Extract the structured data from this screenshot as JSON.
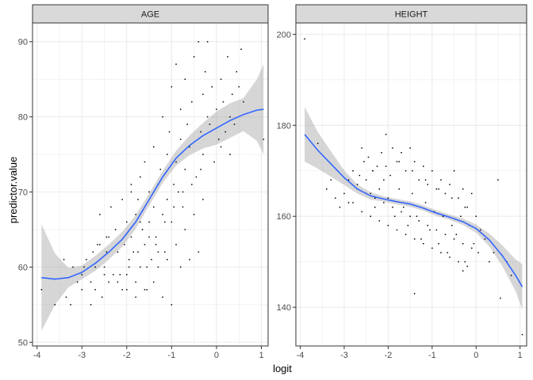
{
  "chart_data": {
    "type": "scatter",
    "xlabel": "logit",
    "ylabel": "predictor.value",
    "colors": {
      "panel_bg": "#ffffff",
      "grid": "#ebebeb",
      "strip_bg": "#d9d9d9",
      "border": "#333333",
      "smooth_line": "#3366ff",
      "ribbon": "#999999",
      "points": "#000000"
    },
    "grid": true,
    "panels": [
      {
        "strip": "AGE",
        "xlim": [
          -4.1,
          1.15
        ],
        "ylim": [
          49.5,
          92.5
        ],
        "xticks": [
          -4,
          -3,
          -2,
          -1,
          0,
          1
        ],
        "xtick_labels": [
          "-4",
          "-3",
          "-2",
          "-1",
          "0",
          "1"
        ],
        "yticks": [
          50,
          60,
          70,
          80,
          90
        ],
        "ytick_labels": [
          "50",
          "60",
          "70",
          "80",
          "90"
        ],
        "smooth": {
          "x": [
            -3.9,
            -3.6,
            -3.3,
            -3.0,
            -2.7,
            -2.4,
            -2.1,
            -1.8,
            -1.5,
            -1.2,
            -0.9,
            -0.6,
            -0.3,
            0.0,
            0.3,
            0.6,
            0.9,
            1.05
          ],
          "y": [
            58.6,
            58.4,
            58.6,
            59.3,
            60.5,
            62.0,
            63.7,
            66.0,
            69.0,
            72.0,
            74.5,
            76.2,
            77.5,
            78.5,
            79.5,
            80.3,
            80.9,
            81.0
          ],
          "lower": [
            51.5,
            55.0,
            57.3,
            58.4,
            59.5,
            61.0,
            62.7,
            65.1,
            68.2,
            71.2,
            73.5,
            74.9,
            75.8,
            76.3,
            77.2,
            78.1,
            76.8,
            75.0
          ],
          "upper": [
            65.7,
            61.8,
            59.9,
            60.2,
            61.5,
            63.0,
            64.7,
            66.9,
            69.8,
            72.8,
            75.5,
            77.5,
            79.2,
            80.7,
            81.8,
            82.5,
            85.0,
            87.0
          ]
        },
        "points": {
          "x": [
            -3.9,
            -3.6,
            -3.4,
            -3.35,
            -3.25,
            -3.1,
            -3.0,
            -2.95,
            -2.8,
            -2.75,
            -2.7,
            -2.7,
            -2.6,
            -2.55,
            -2.5,
            -2.45,
            -2.4,
            -2.4,
            -2.3,
            -2.25,
            -2.2,
            -2.1,
            -2.05,
            -2.0,
            -2.0,
            -1.95,
            -1.9,
            -1.9,
            -1.85,
            -1.8,
            -1.8,
            -1.75,
            -1.7,
            -1.7,
            -1.65,
            -1.6,
            -1.6,
            -1.55,
            -1.5,
            -1.5,
            -1.45,
            -1.4,
            -1.4,
            -1.35,
            -1.3,
            -1.3,
            -1.25,
            -1.2,
            -1.2,
            -1.15,
            -1.1,
            -1.1,
            -1.05,
            -1.0,
            -1.0,
            -0.95,
            -0.9,
            -0.9,
            -0.85,
            -0.8,
            -0.8,
            -0.75,
            -0.7,
            -0.7,
            -0.65,
            -0.6,
            -0.55,
            -0.5,
            -0.45,
            -0.4,
            -0.35,
            -0.3,
            -0.3,
            -0.25,
            -0.2,
            -0.2,
            -0.15,
            -0.1,
            -0.05,
            0.0,
            0.05,
            0.1,
            0.15,
            0.2,
            0.25,
            0.3,
            0.35,
            0.4,
            0.45,
            0.5,
            0.55,
            0.6,
            1.05,
            -2.6,
            -2.35,
            -2.1,
            -1.9,
            -1.7,
            -1.5,
            -1.3,
            -1.1,
            -0.9,
            -0.7,
            -0.5,
            -0.3,
            -2.8,
            -2.5,
            -2.2,
            -2.0,
            -1.8,
            -1.6,
            -1.4,
            -1.2,
            -1.0,
            -0.8,
            -0.6,
            -0.4,
            -3.2,
            -3.0,
            -2.9,
            -2.65,
            -2.45,
            -2.15,
            -1.95,
            -1.75,
            -1.55,
            -1.35,
            -1.15,
            -0.95,
            -0.75,
            -0.55,
            -0.35,
            0.1,
            0.3
          ],
          "y": [
            57,
            55,
            61,
            56,
            55,
            58,
            59,
            60,
            55,
            62,
            57,
            60,
            63,
            56,
            60,
            62,
            58,
            64,
            59,
            65,
            62,
            57,
            63,
            66,
            59,
            60,
            71,
            64,
            62,
            67,
            58,
            69,
            60,
            72,
            65,
            63,
            74,
            57,
            66,
            70,
            61,
            68,
            76,
            63,
            71,
            60,
            73,
            67,
            80,
            62,
            75,
            69,
            78,
            66,
            84,
            71,
            74,
            87,
            70,
            77,
            81,
            68,
            85,
            73,
            79,
            76,
            82,
            88,
            72,
            90,
            78,
            83,
            75,
            86,
            80,
            90,
            79,
            84,
            74,
            81,
            77,
            85,
            82,
            78,
            88,
            80,
            83,
            79,
            86,
            84,
            89,
            82,
            77,
            67,
            68,
            69,
            70,
            66,
            64,
            62,
            61,
            63,
            65,
            67,
            69,
            58,
            59,
            58,
            57,
            56,
            57,
            58,
            56,
            55,
            60,
            61,
            62,
            60,
            57,
            61,
            63,
            64,
            59,
            61,
            62,
            60,
            64,
            66,
            68,
            70,
            71,
            73,
            76,
            75
          ]
        }
      },
      {
        "strip": "HEIGHT",
        "xlim": [
          -4.1,
          1.15
        ],
        "ylim": [
          131.5,
          202.5
        ],
        "xticks": [
          -4,
          -3,
          -2,
          -1,
          0,
          1
        ],
        "xtick_labels": [
          "-4",
          "-3",
          "-2",
          "-1",
          "0",
          "1"
        ],
        "yticks": [
          140,
          160,
          180,
          200
        ],
        "ytick_labels": [
          "140",
          "160",
          "180",
          "200"
        ],
        "smooth": {
          "x": [
            -3.9,
            -3.6,
            -3.3,
            -3.0,
            -2.7,
            -2.4,
            -2.1,
            -1.8,
            -1.5,
            -1.2,
            -0.9,
            -0.6,
            -0.3,
            0.0,
            0.3,
            0.6,
            0.9,
            1.05
          ],
          "y": [
            178.0,
            174.5,
            171.5,
            168.5,
            166.0,
            164.5,
            163.8,
            163.2,
            162.7,
            161.8,
            160.7,
            159.8,
            158.8,
            157.3,
            154.8,
            151.3,
            147.0,
            144.5
          ],
          "lower": [
            172.0,
            170.5,
            168.7,
            166.9,
            165.0,
            163.7,
            163.2,
            162.6,
            162.1,
            161.2,
            160.1,
            159.2,
            158.1,
            156.4,
            153.4,
            149.0,
            143.5,
            139.5
          ],
          "upper": [
            184.0,
            178.5,
            174.3,
            170.1,
            167.0,
            165.3,
            164.4,
            163.8,
            163.3,
            162.4,
            161.3,
            160.4,
            159.5,
            158.2,
            156.2,
            153.6,
            150.5,
            149.5
          ]
        },
        "points": {
          "x": [
            -3.9,
            -3.6,
            -3.4,
            -3.3,
            -3.2,
            -3.1,
            -3.0,
            -2.9,
            -2.8,
            -2.7,
            -2.6,
            -2.55,
            -2.5,
            -2.45,
            -2.4,
            -2.35,
            -2.3,
            -2.25,
            -2.2,
            -2.15,
            -2.1,
            -2.05,
            -2.0,
            -1.95,
            -1.9,
            -1.85,
            -1.8,
            -1.75,
            -1.7,
            -1.65,
            -1.6,
            -1.55,
            -1.5,
            -1.45,
            -1.4,
            -1.35,
            -1.3,
            -1.25,
            -1.2,
            -1.15,
            -1.1,
            -1.05,
            -1.0,
            -0.95,
            -0.9,
            -0.85,
            -0.8,
            -0.75,
            -0.7,
            -0.65,
            -0.6,
            -0.55,
            -0.5,
            -0.45,
            -0.4,
            -0.35,
            -0.3,
            -0.25,
            -0.2,
            -0.15,
            -0.1,
            -0.05,
            0.0,
            0.05,
            0.1,
            0.2,
            0.3,
            0.4,
            0.5,
            0.55,
            0.7,
            0.8,
            1.05,
            -2.8,
            -2.6,
            -2.4,
            -2.2,
            -2.0,
            -1.8,
            -1.6,
            -1.4,
            -1.2,
            -1.0,
            -0.8,
            -0.6,
            -0.4,
            -0.2,
            -2.7,
            -2.5,
            -2.3,
            -2.1,
            -1.9,
            -1.7,
            -1.5,
            -1.3,
            -1.1,
            -0.9,
            -0.7,
            -0.5,
            -0.3,
            -0.1,
            -2.9,
            -2.65,
            -2.35,
            -2.05,
            -1.75,
            -1.45,
            -1.15,
            -0.85,
            -0.55,
            -0.25,
            -1.4,
            -0.3
          ],
          "y": [
            199,
            176,
            166,
            168,
            164,
            162,
            165,
            163,
            170,
            167,
            175,
            172,
            168,
            173,
            165,
            170,
            162,
            171,
            166,
            174,
            168,
            178,
            164,
            169,
            175,
            160,
            172,
            166,
            174,
            162,
            170,
            158,
            175,
            165,
            172,
            160,
            168,
            155,
            171,
            163,
            167,
            157,
            170,
            161,
            166,
            154,
            168,
            160,
            165,
            152,
            167,
            158,
            170,
            156,
            164,
            160,
            166,
            150,
            162,
            158,
            165,
            154,
            160,
            152,
            157,
            155,
            150,
            152,
            168,
            142,
            150,
            147,
            134,
            163,
            161,
            160,
            159,
            158,
            157,
            156,
            155,
            154,
            153,
            152,
            151,
            150,
            149,
            166,
            165,
            164,
            163,
            162,
            161,
            160,
            159,
            158,
            157,
            156,
            155,
            154,
            153,
            168,
            169,
            170,
            171,
            172,
            170,
            168,
            166,
            164,
            162,
            143,
            148
          ]
        }
      }
    ]
  }
}
